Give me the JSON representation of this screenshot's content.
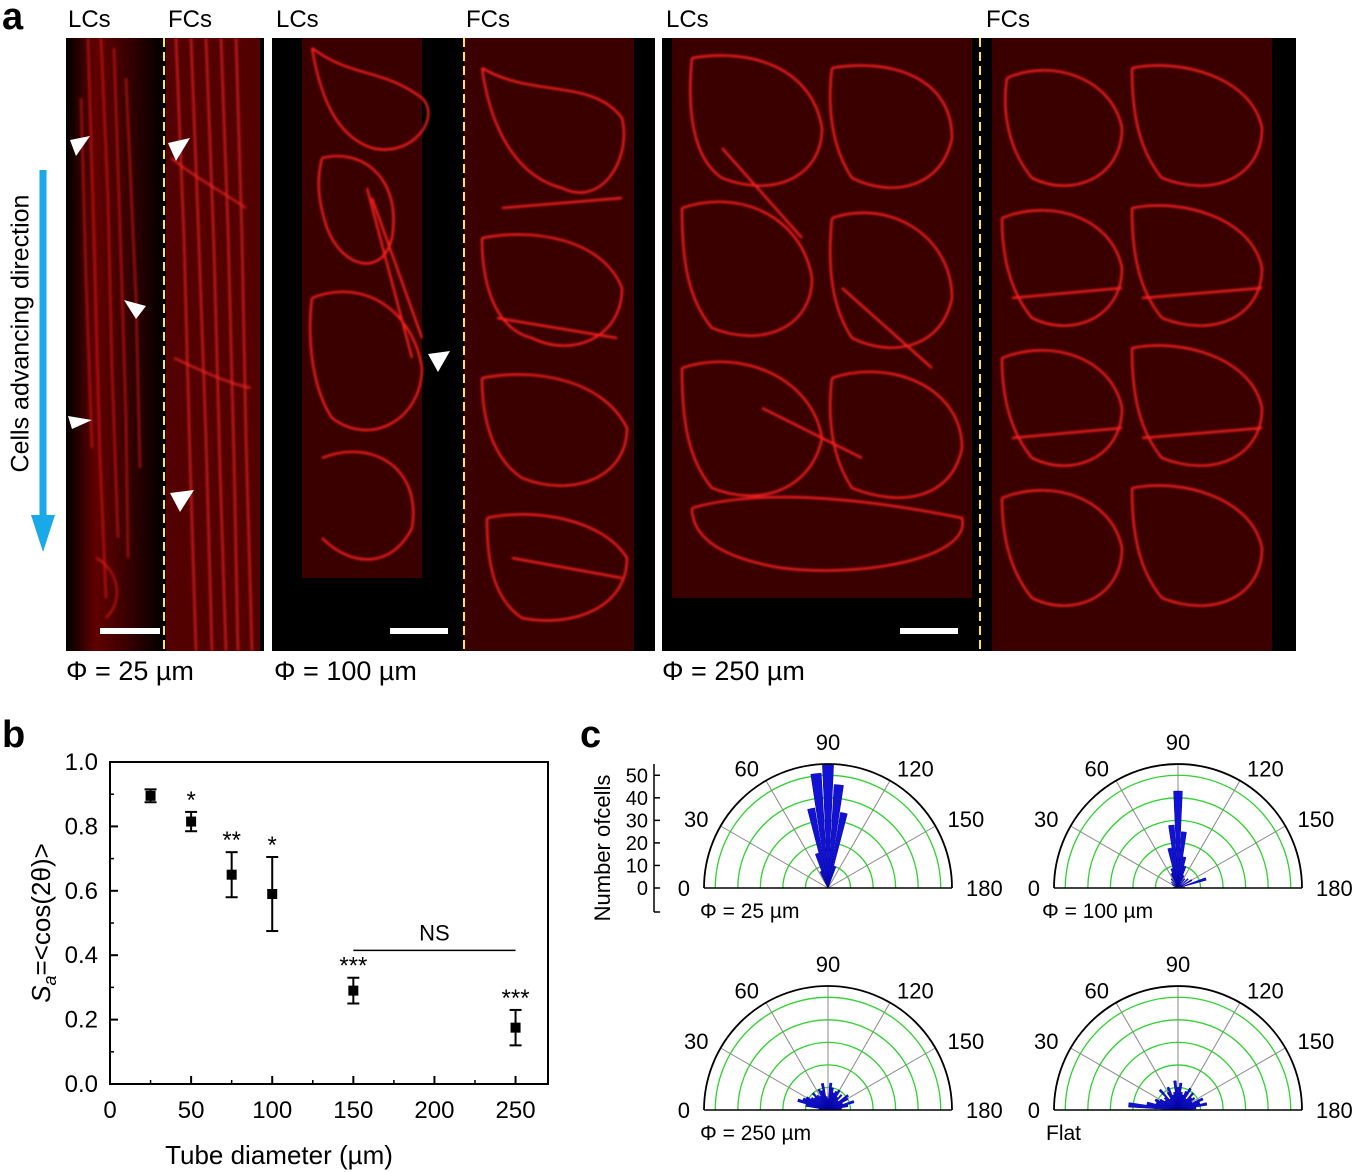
{
  "panel_a": {
    "letter": "a",
    "groups": [
      {
        "left_label": "LCs",
        "right_label": "FCs",
        "diameter": "Φ = 25 µm"
      },
      {
        "left_label": "LCs",
        "right_label": "FCs",
        "diameter": "Φ = 100 µm"
      },
      {
        "left_label": "LCs",
        "right_label": "FCs",
        "diameter": "Φ = 250 µm"
      }
    ],
    "direction_label": "Cells advancing direction",
    "colors": {
      "stain": "#ff1a1a",
      "divider": "#ffe63a",
      "arrow": "#1aa9e8",
      "marker": "#ffffff"
    }
  },
  "panel_b": {
    "letter": "b",
    "chart_data": {
      "type": "scatter",
      "xlabel": "Tube diameter (µm)",
      "ylabel": "Sa=<cos(2θ)>",
      "ylabel_parts": {
        "main": "S",
        "sub": "a",
        "rest": "=<cos(2θ)>"
      },
      "xlim": [
        0,
        270
      ],
      "ylim": [
        0.0,
        1.0
      ],
      "xticks": [
        "0",
        "50",
        "100",
        "150",
        "200",
        "250"
      ],
      "yticks": [
        "0.0",
        "0.2",
        "0.4",
        "0.6",
        "0.8",
        "1.0"
      ],
      "points": [
        {
          "x": 25,
          "y": 0.895,
          "err": 0.02,
          "sig": ""
        },
        {
          "x": 50,
          "y": 0.815,
          "err": 0.03,
          "sig": "*"
        },
        {
          "x": 75,
          "y": 0.65,
          "err": 0.07,
          "sig": "**"
        },
        {
          "x": 100,
          "y": 0.59,
          "err": 0.115,
          "sig": "*"
        },
        {
          "x": 150,
          "y": 0.29,
          "err": 0.04,
          "sig": "***"
        },
        {
          "x": 250,
          "y": 0.175,
          "err": 0.055,
          "sig": "***"
        }
      ],
      "bracket": {
        "x_from": 150,
        "x_to": 250,
        "y": 0.415,
        "label": "NS"
      }
    }
  },
  "panel_c": {
    "letter": "c",
    "chart_data": {
      "type": "polar-histogram",
      "ylabel": "Number ofcells",
      "radial_ticks": [
        "0",
        "10",
        "20",
        "30",
        "40",
        "50"
      ],
      "radial_max": 55,
      "angle_labels": [
        "0",
        "30",
        "60",
        "90",
        "120",
        "150",
        "180"
      ],
      "bin_width_deg": 6,
      "plots": [
        {
          "label": "Φ = 25 µm",
          "bins": [
            {
              "a": 66,
              "v": 8
            },
            {
              "a": 72,
              "v": 16
            },
            {
              "a": 78,
              "v": 36
            },
            {
              "a": 84,
              "v": 51
            },
            {
              "a": 90,
              "v": 55
            },
            {
              "a": 96,
              "v": 46
            },
            {
              "a": 102,
              "v": 34
            },
            {
              "a": 108,
              "v": 10
            }
          ]
        },
        {
          "label": "Φ = 100 µm",
          "bins": [
            {
              "a": 12,
              "v": 2
            },
            {
              "a": 30,
              "v": 3
            },
            {
              "a": 42,
              "v": 4
            },
            {
              "a": 54,
              "v": 5
            },
            {
              "a": 66,
              "v": 7
            },
            {
              "a": 72,
              "v": 9
            },
            {
              "a": 78,
              "v": 18
            },
            {
              "a": 84,
              "v": 28
            },
            {
              "a": 90,
              "v": 43
            },
            {
              "a": 96,
              "v": 25
            },
            {
              "a": 102,
              "v": 14
            },
            {
              "a": 108,
              "v": 10
            },
            {
              "a": 114,
              "v": 6
            },
            {
              "a": 126,
              "v": 5
            },
            {
              "a": 138,
              "v": 6
            },
            {
              "a": 150,
              "v": 7
            },
            {
              "a": 162,
              "v": 13
            },
            {
              "a": 174,
              "v": 3
            }
          ]
        },
        {
          "label": "Φ = 250 µm",
          "bins": [
            {
              "a": 6,
              "v": 4
            },
            {
              "a": 12,
              "v": 10
            },
            {
              "a": 18,
              "v": 14
            },
            {
              "a": 24,
              "v": 12
            },
            {
              "a": 30,
              "v": 11
            },
            {
              "a": 36,
              "v": 9
            },
            {
              "a": 42,
              "v": 8
            },
            {
              "a": 48,
              "v": 10
            },
            {
              "a": 54,
              "v": 8
            },
            {
              "a": 60,
              "v": 7
            },
            {
              "a": 66,
              "v": 10
            },
            {
              "a": 72,
              "v": 9
            },
            {
              "a": 78,
              "v": 12
            },
            {
              "a": 84,
              "v": 6
            },
            {
              "a": 90,
              "v": 5
            },
            {
              "a": 96,
              "v": 12
            },
            {
              "a": 102,
              "v": 10
            },
            {
              "a": 108,
              "v": 8
            },
            {
              "a": 114,
              "v": 9
            },
            {
              "a": 120,
              "v": 10
            },
            {
              "a": 126,
              "v": 7
            },
            {
              "a": 132,
              "v": 9
            },
            {
              "a": 138,
              "v": 6
            },
            {
              "a": 144,
              "v": 11
            },
            {
              "a": 150,
              "v": 10
            },
            {
              "a": 156,
              "v": 7
            },
            {
              "a": 162,
              "v": 12
            },
            {
              "a": 168,
              "v": 9
            },
            {
              "a": 174,
              "v": 6
            }
          ]
        },
        {
          "label": "Flat",
          "bins": [
            {
              "a": 6,
              "v": 22
            },
            {
              "a": 12,
              "v": 14
            },
            {
              "a": 18,
              "v": 10
            },
            {
              "a": 24,
              "v": 11
            },
            {
              "a": 30,
              "v": 9
            },
            {
              "a": 36,
              "v": 7
            },
            {
              "a": 42,
              "v": 8
            },
            {
              "a": 48,
              "v": 12
            },
            {
              "a": 54,
              "v": 6
            },
            {
              "a": 60,
              "v": 9
            },
            {
              "a": 66,
              "v": 11
            },
            {
              "a": 72,
              "v": 7
            },
            {
              "a": 78,
              "v": 8
            },
            {
              "a": 84,
              "v": 13
            },
            {
              "a": 90,
              "v": 10
            },
            {
              "a": 96,
              "v": 12
            },
            {
              "a": 102,
              "v": 8
            },
            {
              "a": 108,
              "v": 7
            },
            {
              "a": 114,
              "v": 9
            },
            {
              "a": 120,
              "v": 11
            },
            {
              "a": 126,
              "v": 6
            },
            {
              "a": 132,
              "v": 10
            },
            {
              "a": 138,
              "v": 8
            },
            {
              "a": 144,
              "v": 9
            },
            {
              "a": 150,
              "v": 7
            },
            {
              "a": 156,
              "v": 12
            },
            {
              "a": 162,
              "v": 10
            },
            {
              "a": 168,
              "v": 13
            },
            {
              "a": 174,
              "v": 8
            }
          ]
        }
      ]
    }
  }
}
